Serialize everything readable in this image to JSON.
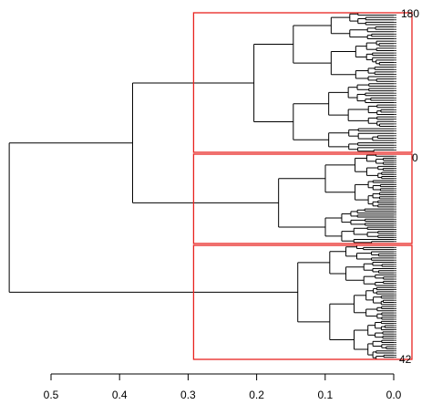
{
  "chart_data": {
    "type": "dendrogram",
    "orientation": "horizontal",
    "x_axis": {
      "reversed": true,
      "range": [
        0.0,
        0.5
      ],
      "ticks": [
        0.5,
        0.4,
        0.3,
        0.2,
        0.1,
        0.0
      ],
      "tick_labels": [
        "0.5",
        "0.4",
        "0.3",
        "0.2",
        "0.1",
        "0.0"
      ]
    },
    "leaf_labels": {
      "top": "180",
      "middle": "0",
      "bottom": "42"
    },
    "clusters": [
      {
        "id": "A",
        "order": 1,
        "merge_height": 0.204
      },
      {
        "id": "B",
        "order": 2,
        "merge_height": 0.168
      },
      {
        "id": "C",
        "order": 3,
        "merge_height": 0.14
      }
    ],
    "merges": [
      {
        "join": [
          "A",
          "B"
        ],
        "height": 0.381
      },
      {
        "join": [
          "AB",
          "C"
        ],
        "height": 0.561
      }
    ],
    "cut_height": 0.292,
    "cut_clusters": 3,
    "colors": {
      "tree": "#000000",
      "cut_rect": "#e8231f",
      "background": "#ffffff"
    }
  }
}
